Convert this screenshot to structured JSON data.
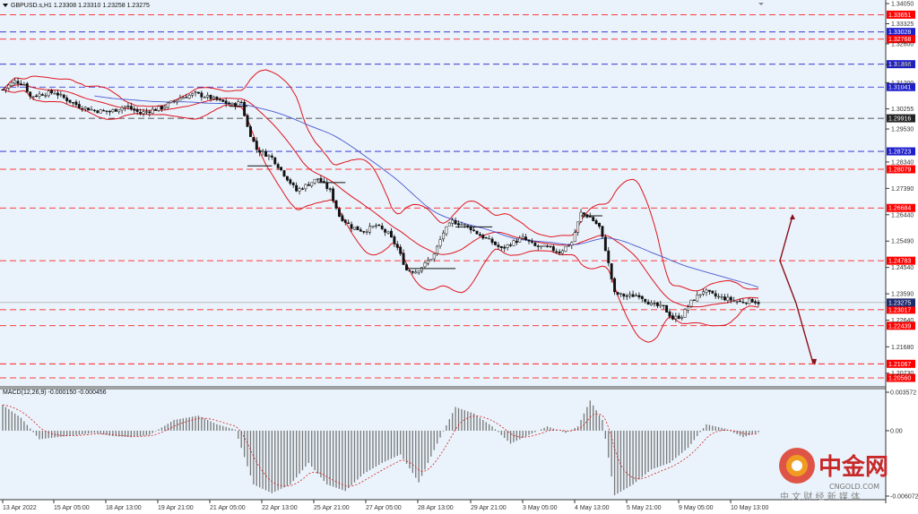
{
  "header": {
    "symbol_line": "GBPUSD.s,H1  1.23308 1.23310 1.23258 1.23275",
    "macd_label": "MACD(12,26,9) -0.000150 -0.000456"
  },
  "watermark": {
    "logo_text": "中金网",
    "site": "CNGOLD.COM",
    "tagline": "中 文 财 经 新 媒 体"
  },
  "colors": {
    "background": "#ffffff",
    "plot_background": "#eaf3fb",
    "red_level": "#ff0000",
    "blue_level": "#1e1ecc",
    "dark_level": "#222222",
    "bollinger": "#e0141e",
    "ma": "#4a58d0",
    "price_tag": "#1e2a6e",
    "arrow": "#8b0f1a",
    "macd_hist": "#777777",
    "macd_signal": "#d02020"
  },
  "chart_data": {
    "type": "candlestick",
    "symbol": "GBPUSD.s",
    "timeframe": "H1",
    "ohlc_header": {
      "open": 1.23308,
      "high": 1.2331,
      "low": 1.23258,
      "close": 1.23275
    },
    "current_price": 1.23275,
    "ylim": [
      1.2056,
      1.3405
    ],
    "y_ticks": [
      1.3405,
      1.33325,
      1.326,
      1.3185,
      1.312,
      1.30255,
      1.2953,
      1.2834,
      1.2739,
      1.2644,
      1.2549,
      1.2454,
      1.2359,
      1.2264,
      1.2168,
      1.2073
    ],
    "x_ticks": [
      "13 Apr 2022",
      "15 Apr 05:00",
      "18 Apr 13:00",
      "19 Apr 21:00",
      "21 Apr 05:00",
      "22 Apr 13:00",
      "25 Apr 21:00",
      "27 Apr 05:00",
      "28 Apr 13:00",
      "29 Apr 21:00",
      "3 May 05:00",
      "4 May 13:00",
      "5 May 21:00",
      "9 May 05:00",
      "10 May 13:00"
    ],
    "levels": [
      {
        "value": "1.33651",
        "style": "red"
      },
      {
        "value": "1.33028",
        "style": "blue"
      },
      {
        "value": "1.32768",
        "style": "red"
      },
      {
        "value": "1.31866",
        "style": "blue"
      },
      {
        "value": "1.31041",
        "style": "blue"
      },
      {
        "value": "1.29916",
        "style": "dark"
      },
      {
        "value": "1.28723",
        "style": "blue"
      },
      {
        "value": "1.28079",
        "style": "red"
      },
      {
        "value": "1.26684",
        "style": "red"
      },
      {
        "value": "1.24783",
        "style": "red"
      },
      {
        "value": "1.23017",
        "style": "red"
      },
      {
        "value": "1.22439",
        "style": "red"
      },
      {
        "value": "1.21067",
        "style": "red"
      },
      {
        "value": "1.20560",
        "style": "red"
      }
    ],
    "price_path": [
      [
        0,
        1.3095
      ],
      [
        4,
        1.3125
      ],
      [
        7,
        1.3115
      ],
      [
        9,
        1.307
      ],
      [
        13,
        1.308
      ],
      [
        17,
        1.3085
      ],
      [
        20,
        1.3065
      ],
      [
        25,
        1.3035
      ],
      [
        30,
        1.302
      ],
      [
        35,
        1.3015
      ],
      [
        40,
        1.3035
      ],
      [
        45,
        1.301
      ],
      [
        52,
        1.303
      ],
      [
        58,
        1.3065
      ],
      [
        63,
        1.308
      ],
      [
        68,
        1.3065
      ],
      [
        72,
        1.305
      ],
      [
        75,
        1.304
      ],
      [
        78,
        1.305
      ],
      [
        80,
        1.296
      ],
      [
        83,
        1.288
      ],
      [
        88,
        1.285
      ],
      [
        92,
        1.279
      ],
      [
        96,
        1.273
      ],
      [
        100,
        1.2755
      ],
      [
        103,
        1.2775
      ],
      [
        107,
        1.273
      ],
      [
        110,
        1.264
      ],
      [
        114,
        1.26
      ],
      [
        118,
        1.2585
      ],
      [
        122,
        1.2605
      ],
      [
        126,
        1.2575
      ],
      [
        129,
        1.2525
      ],
      [
        132,
        1.2445
      ],
      [
        135,
        1.244
      ],
      [
        138,
        1.2465
      ],
      [
        141,
        1.25
      ],
      [
        144,
        1.258
      ],
      [
        147,
        1.262
      ],
      [
        150,
        1.261
      ],
      [
        153,
        1.2595
      ],
      [
        156,
        1.257
      ],
      [
        160,
        1.2545
      ],
      [
        163,
        1.252
      ],
      [
        166,
        1.254
      ],
      [
        170,
        1.256
      ],
      [
        174,
        1.253
      ],
      [
        178,
        1.2525
      ],
      [
        182,
        1.251
      ],
      [
        186,
        1.2545
      ],
      [
        189,
        1.265
      ],
      [
        192,
        1.2635
      ],
      [
        195,
        1.26
      ],
      [
        197,
        1.252
      ],
      [
        200,
        1.236
      ],
      [
        204,
        1.235
      ],
      [
        208,
        1.2355
      ],
      [
        212,
        1.232
      ],
      [
        216,
        1.231
      ],
      [
        219,
        1.227
      ],
      [
        222,
        1.228
      ],
      [
        225,
        1.233
      ],
      [
        229,
        1.237
      ],
      [
        233,
        1.235
      ],
      [
        237,
        1.234
      ],
      [
        241,
        1.233
      ],
      [
        245,
        1.2335
      ],
      [
        247,
        1.23275
      ]
    ],
    "macd": [
      [
        0,
        0.0024
      ],
      [
        6,
        0.0012
      ],
      [
        12,
        -0.0008
      ],
      [
        18,
        -0.0006
      ],
      [
        24,
        -0.0004
      ],
      [
        30,
        -0.0002
      ],
      [
        36,
        -0.0005
      ],
      [
        42,
        -0.0006
      ],
      [
        48,
        -0.0004
      ],
      [
        56,
        0.001
      ],
      [
        64,
        0.0014
      ],
      [
        70,
        0.0006
      ],
      [
        76,
        0.0001
      ],
      [
        82,
        -0.005
      ],
      [
        88,
        -0.0058
      ],
      [
        94,
        -0.005
      ],
      [
        100,
        -0.003
      ],
      [
        106,
        -0.005
      ],
      [
        112,
        -0.0056
      ],
      [
        118,
        -0.004
      ],
      [
        124,
        -0.003
      ],
      [
        130,
        -0.0022
      ],
      [
        136,
        -0.0048
      ],
      [
        142,
        -0.0012
      ],
      [
        148,
        0.0022
      ],
      [
        154,
        0.0016
      ],
      [
        160,
        0.0004
      ],
      [
        166,
        -0.0012
      ],
      [
        172,
        -0.0004
      ],
      [
        178,
        0.0004
      ],
      [
        184,
        -0.0002
      ],
      [
        188,
        0.0004
      ],
      [
        192,
        0.0028
      ],
      [
        196,
        0.001
      ],
      [
        200,
        -0.006
      ],
      [
        206,
        -0.005
      ],
      [
        212,
        -0.0036
      ],
      [
        218,
        -0.003
      ],
      [
        224,
        -0.0016
      ],
      [
        230,
        0.0006
      ],
      [
        236,
        0.0002
      ],
      [
        242,
        -0.0006
      ],
      [
        247,
        -0.00015
      ]
    ],
    "macd_ticks": [
      "0.003572",
      "0.00",
      "-0.006072"
    ]
  }
}
